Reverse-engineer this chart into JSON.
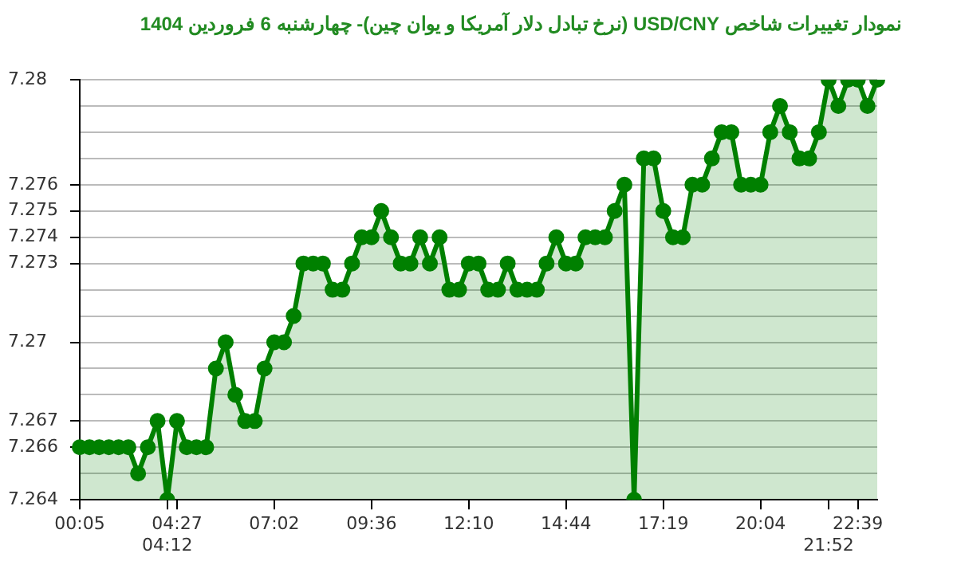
{
  "chart_data": {
    "type": "area",
    "title": "نمودار تغییرات شاخص USD/CNY (نرخ تبادل دلار آمریکا و یوان چین)- چهارشنبه  6 فروردین 1404",
    "categories": [
      "00:05",
      null,
      null,
      null,
      null,
      null,
      null,
      null,
      null,
      "04:12",
      "04:27",
      null,
      null,
      null,
      null,
      null,
      null,
      null,
      null,
      null,
      "07:02",
      null,
      null,
      null,
      null,
      null,
      null,
      null,
      null,
      null,
      "09:36",
      null,
      null,
      null,
      null,
      null,
      null,
      null,
      null,
      null,
      "12:10",
      null,
      null,
      null,
      null,
      null,
      null,
      null,
      null,
      null,
      "14:44",
      null,
      null,
      null,
      null,
      null,
      null,
      null,
      null,
      null,
      "17:19",
      null,
      null,
      null,
      null,
      null,
      null,
      null,
      null,
      null,
      "20:04",
      null,
      null,
      null,
      null,
      null,
      null,
      "21:52",
      null,
      null,
      "22:39",
      null,
      null
    ],
    "series": [
      {
        "color": "#008000",
        "values": [
          7.266,
          7.266,
          7.266,
          7.266,
          7.266,
          7.266,
          7.265,
          7.266,
          7.267,
          7.264,
          7.267,
          7.266,
          7.266,
          7.266,
          7.269,
          7.27,
          7.268,
          7.267,
          7.267,
          7.269,
          7.27,
          7.27,
          7.271,
          7.273,
          7.273,
          7.273,
          7.272,
          7.272,
          7.273,
          7.274,
          7.274,
          7.275,
          7.274,
          7.273,
          7.273,
          7.274,
          7.273,
          7.274,
          7.272,
          7.272,
          7.273,
          7.273,
          7.272,
          7.272,
          7.273,
          7.272,
          7.272,
          7.272,
          7.273,
          7.274,
          7.273,
          7.273,
          7.274,
          7.274,
          7.274,
          7.275,
          7.276,
          7.264,
          7.277,
          7.277,
          7.275,
          7.274,
          7.274,
          7.276,
          7.276,
          7.277,
          7.278,
          7.278,
          7.276,
          7.276,
          7.276,
          7.278,
          7.279,
          7.278,
          7.277,
          7.277,
          7.278,
          7.28,
          7.279,
          7.28,
          7.28,
          7.279,
          7.28
        ]
      }
    ],
    "ylim": [
      7.264,
      7.28
    ],
    "yticks": [
      7.264,
      {
        "value": 7.265,
        "label": null
      },
      7.266,
      7.267,
      {
        "value": 7.268,
        "label": null
      },
      {
        "value": 7.269,
        "label": null
      },
      7.27,
      {
        "value": 7.271,
        "label": null
      },
      {
        "value": 7.272,
        "label": null
      },
      7.273,
      7.274,
      7.275,
      7.276,
      {
        "value": 7.277,
        "label": null
      },
      {
        "value": 7.278,
        "label": null
      },
      {
        "value": 7.279,
        "label": null
      },
      7.28
    ],
    "grid": "y",
    "marker": "circle",
    "line_style": "solid"
  }
}
